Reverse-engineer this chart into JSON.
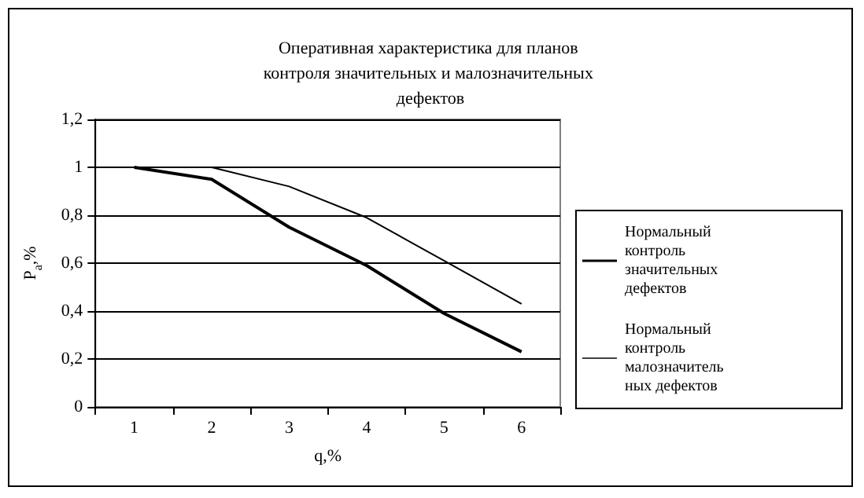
{
  "chart_data": {
    "type": "line",
    "title": "Оперативная характеристика для планов контроля значительных и малозначительных дефектов",
    "xlabel": "q,%",
    "ylabel": "P$_{a}$,%",
    "categories": [
      "1",
      "2",
      "3",
      "4",
      "5",
      "6"
    ],
    "series": [
      {
        "name": "Нормальный контроль значительных дефектов",
        "color": "#000000",
        "values": [
          1,
          0.95,
          0.75,
          0.59,
          0.39,
          0.23
        ]
      },
      {
        "name": "Нормальный контроль малозначительных дефектов",
        "color": "#000000",
        "values": [
          1,
          1,
          0.92,
          0.79,
          0.61,
          0.43
        ]
      }
    ],
    "ylim": [
      0,
      1.2
    ],
    "yticks": [
      0,
      {
        "value": 0.2,
        "label": "0,2"
      },
      {
        "value": 0.4,
        "label": "0,4"
      },
      {
        "value": 0.6,
        "label": "0,6"
      },
      {
        "value": 0.8,
        "label": "0,8"
      },
      1,
      {
        "value": 1.2,
        "label": "1,2"
      }
    ],
    "grid": "y",
    "legend": "right",
    "marker": "none",
    "line_style": "solid"
  }
}
